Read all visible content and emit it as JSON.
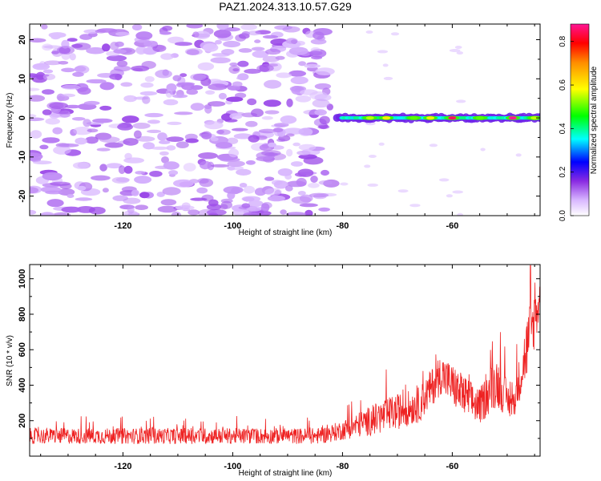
{
  "chart_data": [
    {
      "type": "heatmap",
      "title": "PAZ1.2024.313.10.57.G29",
      "xlabel": "Height of straight line (km)",
      "ylabel": "Frequency (Hz)",
      "xlim": [
        -137,
        -44
      ],
      "ylim": [
        -25,
        24
      ],
      "xticks": [
        -120,
        -100,
        -80,
        -60
      ],
      "yticks": [
        -20,
        -10,
        0,
        10,
        20
      ],
      "colorbar": {
        "label": "Normalized spectral amplitude",
        "ticks": [
          0.0,
          0.2,
          0.4,
          0.6,
          0.8
        ],
        "range": [
          0.0,
          0.88
        ],
        "colormap": [
          "#ffffff",
          "#d9b8ff",
          "#8a2be2",
          "#0000ff",
          "#00ffff",
          "#00ff00",
          "#ffff00",
          "#ff8c00",
          "#ff0000",
          "#ff1493"
        ]
      },
      "features": [
        {
          "description": "scattered low-amplitude noise blobs",
          "x_range": [
            -137,
            -82
          ],
          "y_range": [
            -25,
            24
          ],
          "amplitude": 0.12
        },
        {
          "description": "narrow band around 0 Hz",
          "x_range": [
            -81,
            -44
          ],
          "y_center": 0,
          "amplitude_peak": 0.88
        }
      ],
      "band_peaks": [
        {
          "x": -75,
          "amp": 0.55
        },
        {
          "x": -72,
          "amp": 0.6
        },
        {
          "x": -67,
          "amp": 0.5
        },
        {
          "x": -64,
          "amp": 0.6
        },
        {
          "x": -60,
          "amp": 0.85
        },
        {
          "x": -55,
          "amp": 0.5
        },
        {
          "x": -49,
          "amp": 0.88
        },
        {
          "x": -45,
          "amp": 0.55
        }
      ]
    },
    {
      "type": "line",
      "xlabel": "Height of straight line (km)",
      "ylabel": "SNR (10 * v/v)",
      "xlim": [
        -137,
        -44
      ],
      "ylim": [
        0,
        1080
      ],
      "xticks": [
        -120,
        -100,
        -80,
        -60
      ],
      "yticks": [
        200,
        400,
        600,
        800,
        1000
      ],
      "color": "#ee2222",
      "envelope": [
        {
          "x": -137,
          "base": 100,
          "amp": 90
        },
        {
          "x": -84,
          "base": 100,
          "amp": 90
        },
        {
          "x": -80,
          "base": 130,
          "amp": 110
        },
        {
          "x": -72,
          "base": 200,
          "amp": 200
        },
        {
          "x": -66,
          "base": 260,
          "amp": 200
        },
        {
          "x": -62,
          "base": 430,
          "amp": 230
        },
        {
          "x": -58,
          "base": 300,
          "amp": 250
        },
        {
          "x": -55,
          "base": 250,
          "amp": 200
        },
        {
          "x": -52,
          "base": 380,
          "amp": 300
        },
        {
          "x": -49,
          "base": 250,
          "amp": 150
        },
        {
          "x": -46,
          "base": 600,
          "amp": 400
        },
        {
          "x": -44,
          "base": 850,
          "amp": 250
        }
      ]
    }
  ]
}
